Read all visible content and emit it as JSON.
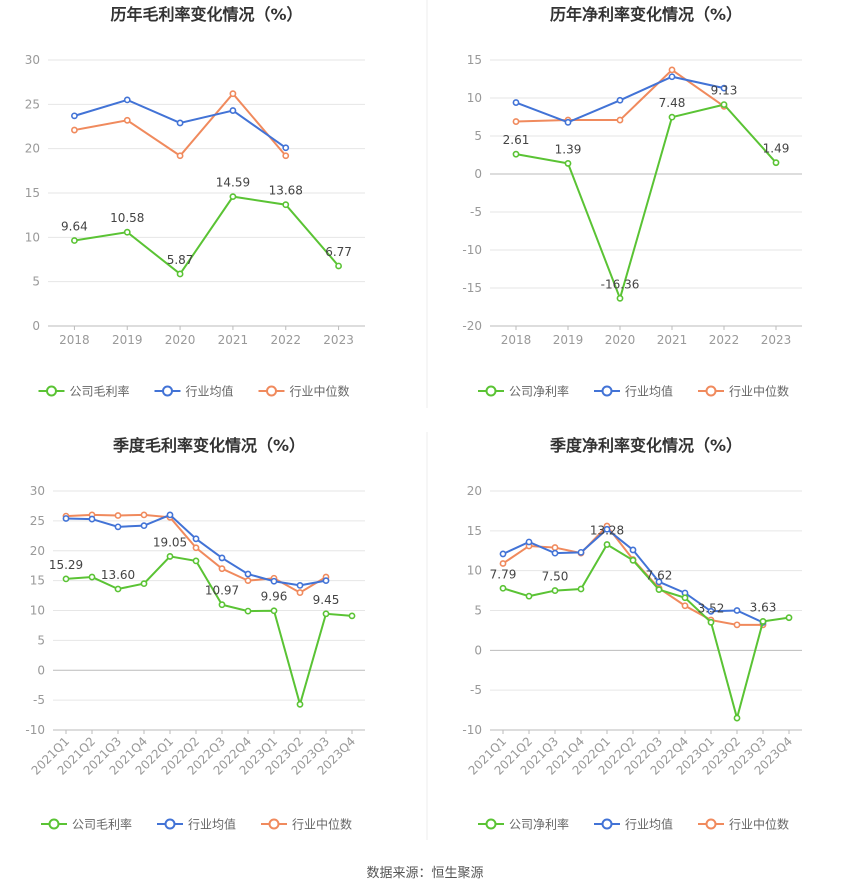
{
  "source": "数据来源：恒生聚源",
  "colors": {
    "company": "#5ac334",
    "avg": "#4273d6",
    "median": "#f08a5d",
    "grid": "#e6e6e6",
    "axis": "#999999",
    "text": "#666666",
    "title": "#333333"
  },
  "chart_data": [
    {
      "type": "line",
      "title": "历年毛利率变化情况（%）",
      "categories": [
        "2018",
        "2019",
        "2020",
        "2021",
        "2022",
        "2023"
      ],
      "ylim": [
        0,
        30
      ],
      "yticks": [
        0,
        5,
        10,
        15,
        20,
        25,
        30
      ],
      "rotate_x": false,
      "legend_position": "bottom",
      "series": [
        {
          "name": "公司毛利率",
          "key": "company",
          "values": [
            9.64,
            10.58,
            5.87,
            14.59,
            13.68,
            6.77
          ],
          "labels": [
            "9.64",
            "10.58",
            "5.87",
            "14.59",
            "13.68",
            "6.77"
          ]
        },
        {
          "name": "行业均值",
          "key": "avg",
          "values": [
            23.7,
            25.5,
            22.9,
            24.3,
            20.1,
            null
          ]
        },
        {
          "name": "行业中位数",
          "key": "median",
          "values": [
            22.1,
            23.2,
            19.2,
            26.2,
            19.2,
            null
          ]
        }
      ]
    },
    {
      "type": "line",
      "title": "历年净利率变化情况（%）",
      "categories": [
        "2018",
        "2019",
        "2020",
        "2021",
        "2022",
        "2023"
      ],
      "ylim": [
        -20,
        15
      ],
      "yticks": [
        -20,
        -15,
        -10,
        -5,
        0,
        5,
        10,
        15
      ],
      "rotate_x": false,
      "legend_position": "bottom",
      "series": [
        {
          "name": "公司净利率",
          "key": "company",
          "values": [
            2.61,
            1.39,
            -16.36,
            7.48,
            9.13,
            1.49
          ],
          "labels": [
            "2.61",
            "1.39",
            "-16.36",
            "7.48",
            "9.13",
            "1.49"
          ]
        },
        {
          "name": "行业均值",
          "key": "avg",
          "values": [
            9.4,
            6.8,
            9.7,
            12.8,
            11.3,
            null
          ]
        },
        {
          "name": "行业中位数",
          "key": "median",
          "values": [
            6.9,
            7.1,
            7.1,
            13.7,
            8.9,
            null
          ]
        }
      ]
    },
    {
      "type": "line",
      "title": "季度毛利率变化情况（%）",
      "categories": [
        "2021Q1",
        "2021Q2",
        "2021Q3",
        "2021Q4",
        "2022Q1",
        "2022Q2",
        "2022Q3",
        "2022Q4",
        "2023Q1",
        "2023Q2",
        "2023Q3",
        "2023Q4"
      ],
      "ylim": [
        -10,
        30
      ],
      "yticks": [
        -10,
        -5,
        0,
        5,
        10,
        15,
        20,
        25,
        30
      ],
      "rotate_x": true,
      "legend_position": "bottom",
      "series": [
        {
          "name": "公司毛利率",
          "key": "company",
          "values": [
            15.29,
            15.6,
            13.6,
            14.5,
            19.05,
            18.3,
            10.97,
            9.9,
            9.96,
            -5.7,
            9.45,
            9.1
          ],
          "labels": [
            "15.29",
            null,
            "13.60",
            null,
            "19.05",
            null,
            "10.97",
            null,
            "9.96",
            null,
            "9.45",
            null
          ]
        },
        {
          "name": "行业均值",
          "key": "avg",
          "values": [
            25.4,
            25.3,
            24.0,
            24.2,
            26.0,
            22.0,
            18.8,
            16.1,
            14.9,
            14.2,
            15.0,
            null
          ]
        },
        {
          "name": "行业中位数",
          "key": "median",
          "values": [
            25.8,
            26.0,
            25.9,
            26.0,
            25.6,
            20.5,
            17.0,
            15.0,
            15.4,
            13.0,
            15.6,
            null
          ]
        }
      ]
    },
    {
      "type": "line",
      "title": "季度净利率变化情况（%）",
      "categories": [
        "2021Q1",
        "2021Q2",
        "2021Q3",
        "2021Q4",
        "2022Q1",
        "2022Q2",
        "2022Q3",
        "2022Q4",
        "2023Q1",
        "2023Q2",
        "2023Q3",
        "2023Q4"
      ],
      "ylim": [
        -10,
        20
      ],
      "yticks": [
        -10,
        -5,
        0,
        5,
        10,
        15,
        20
      ],
      "rotate_x": true,
      "legend_position": "bottom",
      "series": [
        {
          "name": "公司净利率",
          "key": "company",
          "values": [
            7.79,
            6.8,
            7.5,
            7.7,
            13.28,
            11.3,
            7.62,
            6.6,
            3.52,
            -8.5,
            3.63,
            4.1
          ],
          "labels": [
            "7.79",
            null,
            "7.50",
            null,
            "13.28",
            null,
            "7.62",
            null,
            "3.52",
            null,
            "3.63",
            null
          ]
        },
        {
          "name": "行业均值",
          "key": "avg",
          "values": [
            12.1,
            13.6,
            12.2,
            12.3,
            15.2,
            12.6,
            8.6,
            7.2,
            4.9,
            5.0,
            3.5,
            null
          ]
        },
        {
          "name": "行业中位数",
          "key": "median",
          "values": [
            10.9,
            13.1,
            12.9,
            12.2,
            15.6,
            11.4,
            7.8,
            5.6,
            3.8,
            3.2,
            3.2,
            null
          ]
        }
      ]
    }
  ]
}
